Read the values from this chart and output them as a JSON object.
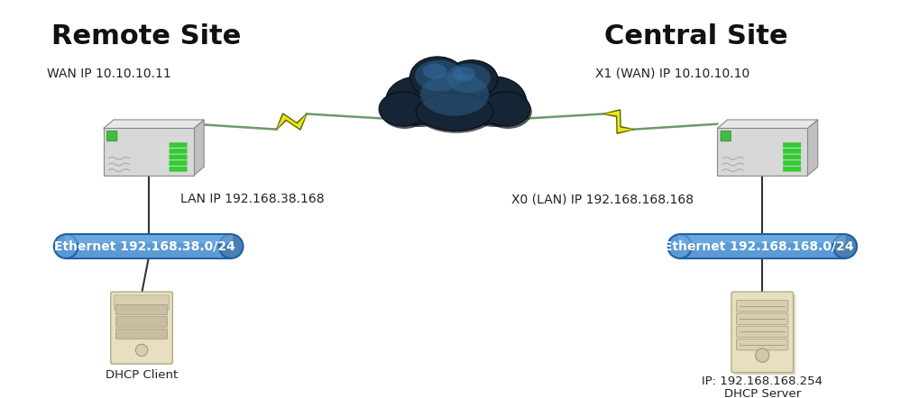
{
  "bg_color": "#ffffff",
  "title_remote": "Remote Site",
  "title_central": "Central Site",
  "title_fontsize": 22,
  "title_fontweight": "bold",
  "label_fontsize": 10,
  "small_label_fontsize": 9.5,
  "wan_ip_remote_label": "WAN IP 10.10.10.11",
  "wan_ip_central_label": "X1 (WAN) IP 10.10.10.10",
  "lan_ip_remote_label": "LAN IP 192.168.38.168",
  "lan_ip_central_label": "X0 (LAN) IP 192.168.168.168",
  "remote_eth_label": "Ethernet 192.168.38.0/24",
  "central_eth_label": "Ethernet 192.168.168.0/24",
  "dhcp_client_label": "DHCP Client",
  "dhcp_server_label1": "IP: 192.168.168.254",
  "dhcp_server_label2": "DHCP Server",
  "eth_box_color": "#5b9bd5",
  "eth_box_color2": "#4a7fb0",
  "eth_text_color": "#ffffff",
  "vpn_line_color": "#6a9a6a",
  "conn_line_color": "#333333",
  "lightning_yellow": "#e8e820",
  "lightning_outline": "#b8b800"
}
